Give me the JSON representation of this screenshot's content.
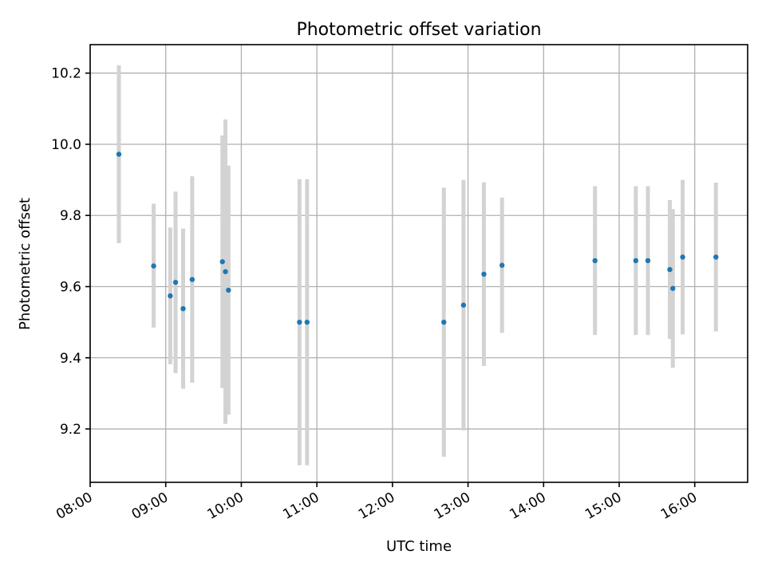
{
  "chart_data": {
    "type": "scatter",
    "title": "Photometric offset variation",
    "xlabel": "UTC time",
    "ylabel": "Photometric offset",
    "x_unit": "hours (UTC)",
    "xlim": [
      8.0,
      16.7
    ],
    "ylim": [
      9.05,
      10.28
    ],
    "x_ticks": [
      {
        "value": 8,
        "label": "08:00"
      },
      {
        "value": 9,
        "label": "09:00"
      },
      {
        "value": 10,
        "label": "10:00"
      },
      {
        "value": 11,
        "label": "11:00"
      },
      {
        "value": 12,
        "label": "12:00"
      },
      {
        "value": 13,
        "label": "13:00"
      },
      {
        "value": 14,
        "label": "14:00"
      },
      {
        "value": 15,
        "label": "15:00"
      },
      {
        "value": 16,
        "label": "16:00"
      }
    ],
    "y_ticks": [
      {
        "value": 9.2,
        "label": "9.2"
      },
      {
        "value": 9.4,
        "label": "9.4"
      },
      {
        "value": 9.6,
        "label": "9.6"
      },
      {
        "value": 9.8,
        "label": "9.8"
      },
      {
        "value": 10.0,
        "label": "10.0"
      },
      {
        "value": 10.2,
        "label": "10.2"
      }
    ],
    "grid": true,
    "colors": {
      "point": "#1f77b4",
      "errorbar": "#d3d3d3",
      "grid": "#b0b0b0"
    },
    "points": [
      {
        "x": 8.38,
        "y": 9.972,
        "ylow": 9.722,
        "yhigh": 10.222
      },
      {
        "x": 8.84,
        "y": 9.658,
        "ylow": 9.485,
        "yhigh": 9.833
      },
      {
        "x": 9.06,
        "y": 9.574,
        "ylow": 9.382,
        "yhigh": 9.766
      },
      {
        "x": 9.13,
        "y": 9.612,
        "ylow": 9.357,
        "yhigh": 9.867
      },
      {
        "x": 9.23,
        "y": 9.538,
        "ylow": 9.313,
        "yhigh": 9.763
      },
      {
        "x": 9.35,
        "y": 9.62,
        "ylow": 9.33,
        "yhigh": 9.91
      },
      {
        "x": 9.75,
        "y": 9.67,
        "ylow": 9.315,
        "yhigh": 10.025
      },
      {
        "x": 9.79,
        "y": 9.642,
        "ylow": 9.214,
        "yhigh": 10.07
      },
      {
        "x": 9.83,
        "y": 9.59,
        "ylow": 9.24,
        "yhigh": 9.94
      },
      {
        "x": 10.77,
        "y": 9.5,
        "ylow": 9.098,
        "yhigh": 9.902
      },
      {
        "x": 10.87,
        "y": 9.5,
        "ylow": 9.098,
        "yhigh": 9.902
      },
      {
        "x": 12.68,
        "y": 9.5,
        "ylow": 9.122,
        "yhigh": 9.878
      },
      {
        "x": 12.94,
        "y": 9.548,
        "ylow": 9.196,
        "yhigh": 9.9
      },
      {
        "x": 13.21,
        "y": 9.635,
        "ylow": 9.377,
        "yhigh": 9.893
      },
      {
        "x": 13.45,
        "y": 9.66,
        "ylow": 9.47,
        "yhigh": 9.85
      },
      {
        "x": 14.68,
        "y": 9.673,
        "ylow": 9.464,
        "yhigh": 9.882
      },
      {
        "x": 15.22,
        "y": 9.673,
        "ylow": 9.464,
        "yhigh": 9.882
      },
      {
        "x": 15.38,
        "y": 9.673,
        "ylow": 9.464,
        "yhigh": 9.882
      },
      {
        "x": 15.67,
        "y": 9.648,
        "ylow": 9.453,
        "yhigh": 9.843
      },
      {
        "x": 15.71,
        "y": 9.595,
        "ylow": 9.372,
        "yhigh": 9.818
      },
      {
        "x": 15.84,
        "y": 9.683,
        "ylow": 9.466,
        "yhigh": 9.9
      },
      {
        "x": 16.28,
        "y": 9.683,
        "ylow": 9.474,
        "yhigh": 9.892
      }
    ]
  }
}
